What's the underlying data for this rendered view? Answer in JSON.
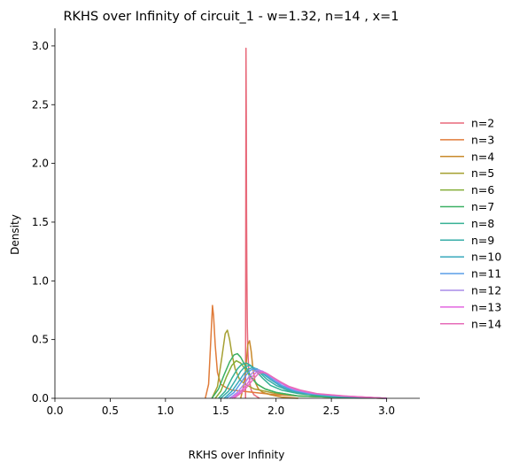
{
  "chart_data": {
    "type": "line",
    "title": "RKHS over Infinity of circuit_1 - w=1.32, n=14 , x=1",
    "xlabel": "RKHS over Infinity",
    "ylabel": "Density",
    "xlim": [
      0.0,
      3.3
    ],
    "ylim": [
      0.0,
      3.15
    ],
    "xticks": [
      0.0,
      0.5,
      1.0,
      1.5,
      2.0,
      2.5,
      3.0
    ],
    "yticks": [
      0.0,
      0.5,
      1.0,
      1.5,
      2.0,
      2.5,
      3.0
    ],
    "xtick_labels": [
      "0.0",
      "0.5",
      "1.0",
      "1.5",
      "2.0",
      "2.5",
      "3.0"
    ],
    "ytick_labels": [
      "0.0",
      "0.5",
      "1.0",
      "1.5",
      "2.0",
      "2.5",
      "3.0"
    ],
    "grid": false,
    "legend_position": "right",
    "series": [
      {
        "name": "n=2",
        "color": "#e8697a",
        "x": [
          1.724,
          1.728,
          1.731,
          1.733,
          1.736,
          1.74,
          1.745,
          1.752,
          1.76,
          1.775,
          1.8,
          1.85
        ],
        "y": [
          0.0,
          2.98,
          2.4,
          1.6,
          1.05,
          0.62,
          0.4,
          0.25,
          0.15,
          0.07,
          0.03,
          0.0
        ]
      },
      {
        "name": "n=3",
        "color": "#e07b39",
        "x": [
          1.36,
          1.39,
          1.41,
          1.425,
          1.435,
          1.45,
          1.47,
          1.5,
          1.55,
          1.6,
          1.7,
          1.8,
          2.0,
          2.2,
          2.5,
          3.0
        ],
        "y": [
          0.0,
          0.12,
          0.5,
          0.79,
          0.7,
          0.45,
          0.22,
          0.12,
          0.09,
          0.07,
          0.06,
          0.05,
          0.03,
          0.02,
          0.01,
          0.0
        ]
      },
      {
        "name": "n=4",
        "color": "#c98a2b",
        "x": [
          1.68,
          1.71,
          1.73,
          1.745,
          1.76,
          1.775,
          1.79,
          1.81,
          1.84,
          1.88,
          1.95,
          2.05,
          2.2
        ],
        "y": [
          0.0,
          0.12,
          0.3,
          0.46,
          0.49,
          0.4,
          0.26,
          0.14,
          0.08,
          0.05,
          0.03,
          0.01,
          0.0
        ]
      },
      {
        "name": "n=5",
        "color": "#a6a032",
        "x": [
          1.42,
          1.47,
          1.51,
          1.54,
          1.56,
          1.58,
          1.6,
          1.63,
          1.67,
          1.72,
          1.8,
          1.9,
          2.0,
          2.2,
          2.5,
          3.0
        ],
        "y": [
          0.0,
          0.1,
          0.35,
          0.55,
          0.58,
          0.5,
          0.38,
          0.25,
          0.16,
          0.12,
          0.08,
          0.06,
          0.04,
          0.02,
          0.01,
          0.0
        ]
      },
      {
        "name": "n=6",
        "color": "#84ae37",
        "x": [
          1.45,
          1.5,
          1.55,
          1.6,
          1.64,
          1.68,
          1.72,
          1.77,
          1.83,
          1.9,
          2.0,
          2.2,
          2.5,
          3.0
        ],
        "y": [
          0.0,
          0.06,
          0.18,
          0.28,
          0.32,
          0.3,
          0.25,
          0.18,
          0.12,
          0.08,
          0.05,
          0.02,
          0.01,
          0.0
        ]
      },
      {
        "name": "n=7",
        "color": "#3cb064",
        "x": [
          1.42,
          1.48,
          1.53,
          1.58,
          1.62,
          1.65,
          1.68,
          1.72,
          1.77,
          1.83,
          1.9,
          2.0,
          2.2,
          2.5,
          3.0
        ],
        "y": [
          0.0,
          0.08,
          0.2,
          0.31,
          0.37,
          0.38,
          0.35,
          0.28,
          0.19,
          0.12,
          0.08,
          0.05,
          0.02,
          0.01,
          0.0
        ]
      },
      {
        "name": "n=8",
        "color": "#35b094",
        "x": [
          1.48,
          1.54,
          1.6,
          1.65,
          1.69,
          1.73,
          1.77,
          1.82,
          1.88,
          1.95,
          2.05,
          2.2,
          2.5,
          3.0
        ],
        "y": [
          0.0,
          0.06,
          0.17,
          0.25,
          0.29,
          0.3,
          0.28,
          0.23,
          0.17,
          0.11,
          0.07,
          0.04,
          0.01,
          0.0
        ]
      },
      {
        "name": "n=9",
        "color": "#37ada8",
        "x": [
          1.5,
          1.57,
          1.63,
          1.68,
          1.72,
          1.76,
          1.8,
          1.85,
          1.92,
          2.0,
          2.1,
          2.25,
          2.5,
          3.0
        ],
        "y": [
          0.0,
          0.06,
          0.15,
          0.23,
          0.27,
          0.28,
          0.26,
          0.22,
          0.16,
          0.11,
          0.07,
          0.04,
          0.02,
          0.0
        ]
      },
      {
        "name": "n=10",
        "color": "#39a9bd",
        "x": [
          1.53,
          1.6,
          1.66,
          1.71,
          1.75,
          1.79,
          1.83,
          1.88,
          1.95,
          2.03,
          2.13,
          2.28,
          2.5,
          3.0
        ],
        "y": [
          0.0,
          0.06,
          0.14,
          0.21,
          0.25,
          0.26,
          0.25,
          0.21,
          0.16,
          0.11,
          0.07,
          0.04,
          0.02,
          0.0
        ]
      },
      {
        "name": "n=11",
        "color": "#5a9ee8",
        "x": [
          1.55,
          1.62,
          1.68,
          1.73,
          1.77,
          1.81,
          1.85,
          1.9,
          1.97,
          2.05,
          2.15,
          2.3,
          2.55,
          3.0
        ],
        "y": [
          0.0,
          0.05,
          0.13,
          0.2,
          0.24,
          0.25,
          0.24,
          0.21,
          0.16,
          0.11,
          0.07,
          0.04,
          0.02,
          0.0
        ]
      },
      {
        "name": "n=12",
        "color": "#a98be8",
        "x": [
          1.58,
          1.65,
          1.71,
          1.76,
          1.8,
          1.84,
          1.88,
          1.93,
          2.0,
          2.08,
          2.18,
          2.33,
          2.58,
          3.0
        ],
        "y": [
          0.0,
          0.05,
          0.12,
          0.19,
          0.23,
          0.24,
          0.23,
          0.2,
          0.15,
          0.11,
          0.07,
          0.04,
          0.02,
          0.0
        ]
      },
      {
        "name": "n=13",
        "color": "#e266e0",
        "x": [
          1.6,
          1.67,
          1.73,
          1.78,
          1.82,
          1.86,
          1.9,
          1.95,
          2.02,
          2.1,
          2.2,
          2.35,
          2.6,
          3.0
        ],
        "y": [
          0.0,
          0.05,
          0.11,
          0.18,
          0.22,
          0.23,
          0.22,
          0.19,
          0.15,
          0.1,
          0.07,
          0.04,
          0.02,
          0.0
        ]
      },
      {
        "name": "n=14",
        "color": "#e66bb8",
        "x": [
          1.62,
          1.69,
          1.75,
          1.8,
          1.84,
          1.88,
          1.92,
          1.97,
          2.04,
          2.12,
          2.22,
          2.37,
          2.62,
          3.0
        ],
        "y": [
          0.0,
          0.05,
          0.11,
          0.17,
          0.21,
          0.22,
          0.21,
          0.18,
          0.14,
          0.1,
          0.07,
          0.04,
          0.02,
          0.0
        ]
      }
    ]
  }
}
